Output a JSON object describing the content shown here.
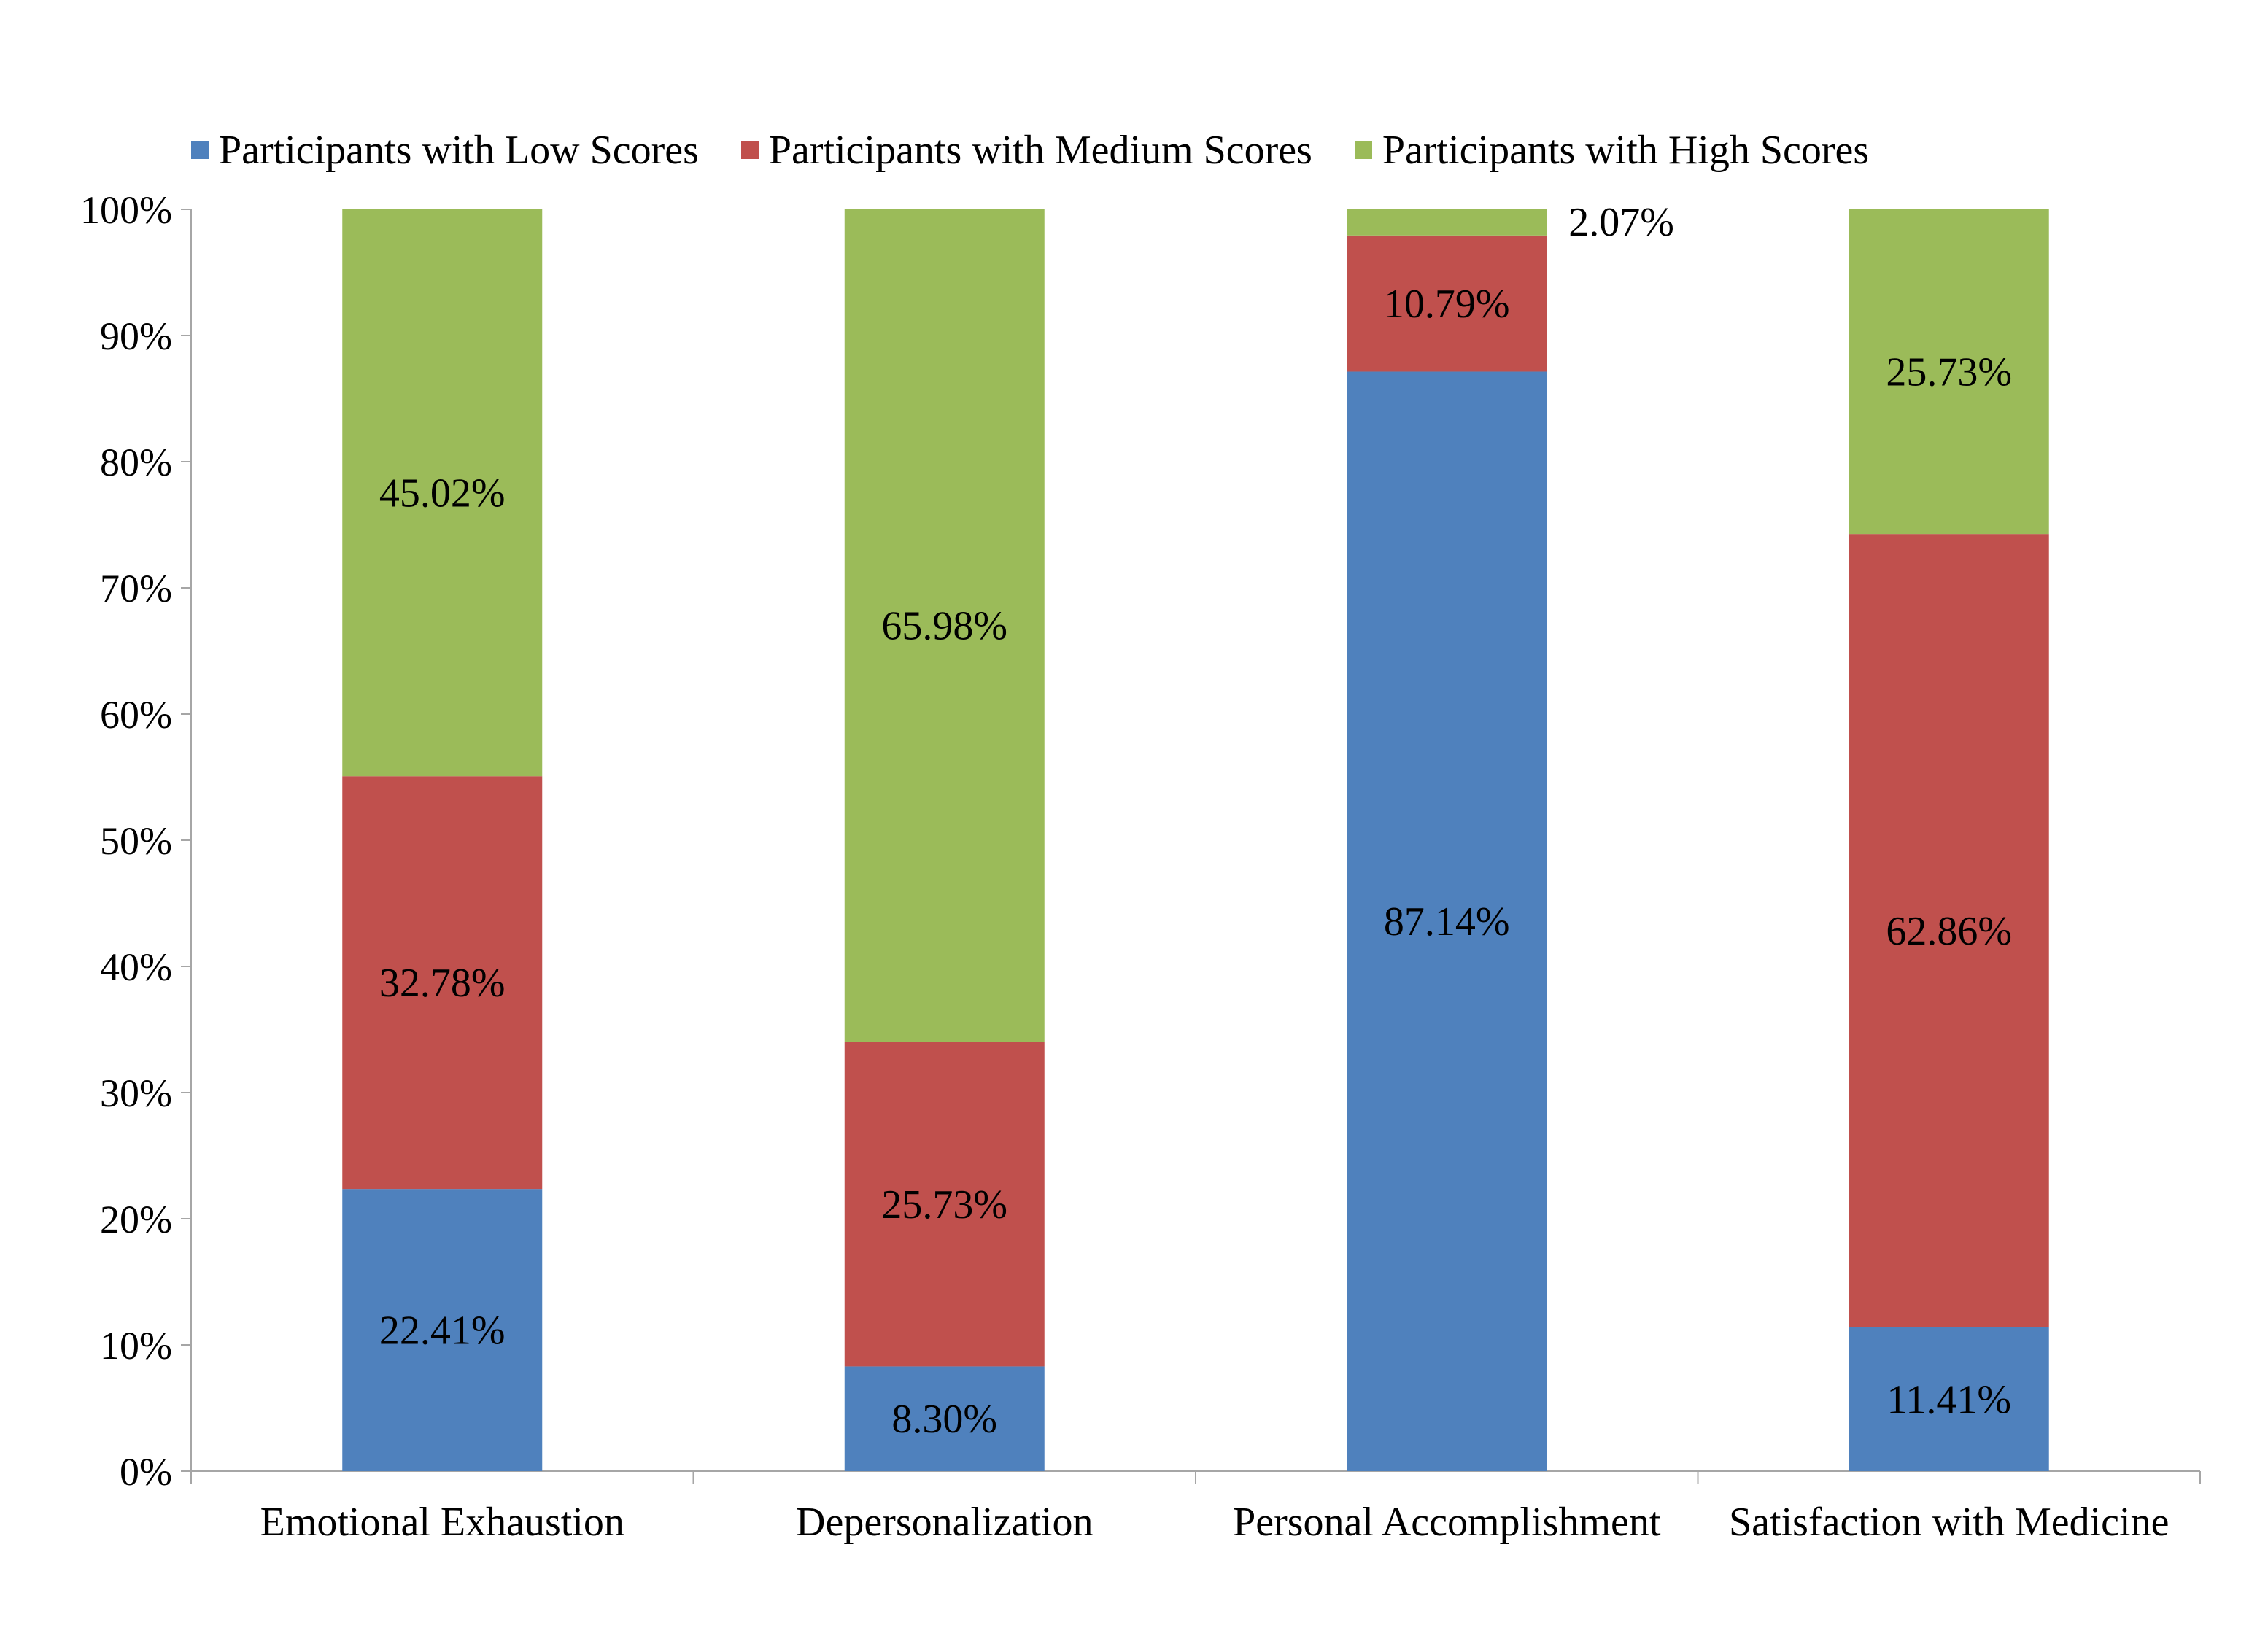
{
  "chart_data": {
    "type": "bar",
    "stacked": true,
    "percent_stacked": true,
    "categories": [
      "Emotional Exhaustion",
      "Depersonalization",
      "Personal Accomplishment",
      "Satisfaction with Medicine"
    ],
    "series": [
      {
        "name": "Participants with Low Scores",
        "color": "#4F81BD",
        "values": [
          22.41,
          8.3,
          87.14,
          11.41
        ],
        "labels": [
          "22.41%",
          "8.30%",
          "87.14%",
          "11.41%"
        ]
      },
      {
        "name": "Participants with Medium Scores",
        "color": "#C0504D",
        "values": [
          32.78,
          25.73,
          10.79,
          62.86
        ],
        "labels": [
          "32.78%",
          "25.73%",
          "10.79%",
          "62.86%"
        ]
      },
      {
        "name": "Participants with High Scores",
        "color": "#9BBB59",
        "values": [
          45.02,
          65.98,
          2.07,
          25.73
        ],
        "labels": [
          "45.02%",
          "65.98%",
          "2.07%",
          "25.73%"
        ]
      }
    ],
    "ylim": [
      0,
      100
    ],
    "yticks": [
      "0%",
      "10%",
      "20%",
      "30%",
      "40%",
      "50%",
      "60%",
      "70%",
      "80%",
      "90%",
      "100%"
    ],
    "xlabel": "",
    "ylabel": "",
    "grid": false,
    "legend_position": "top"
  }
}
